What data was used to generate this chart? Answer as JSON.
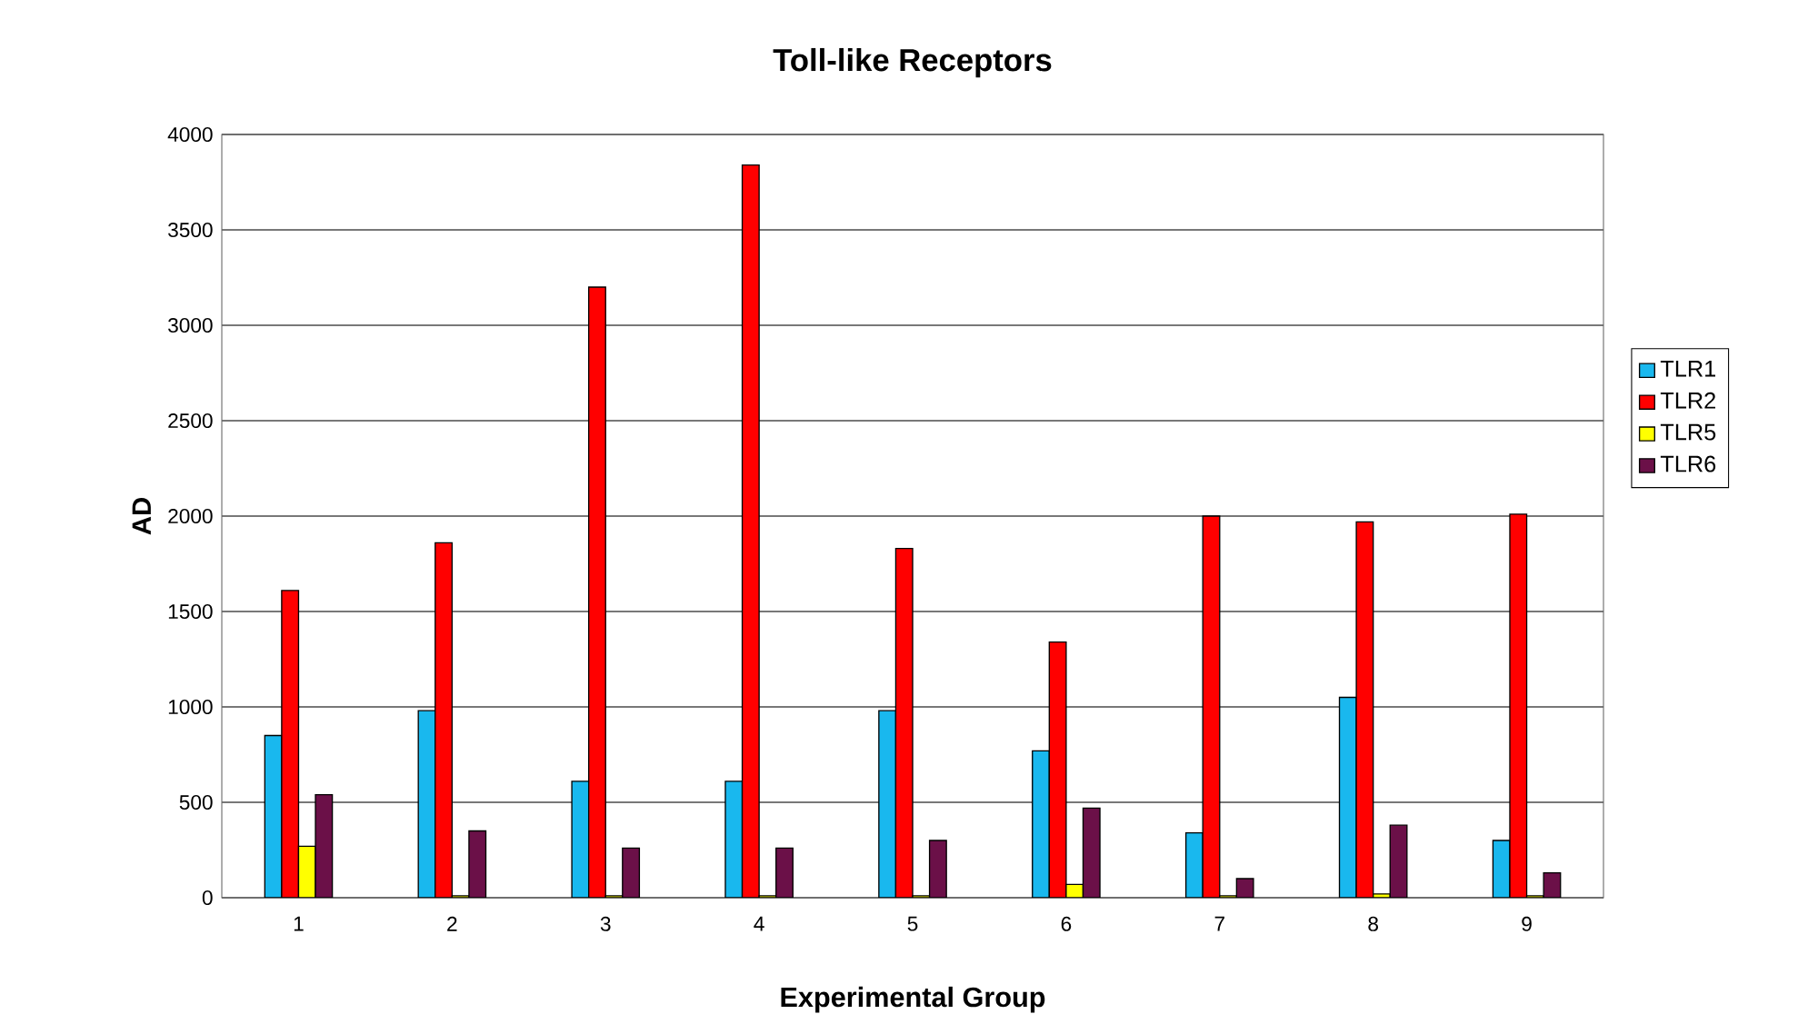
{
  "chart_data": {
    "type": "bar",
    "title": "Toll-like Receptors",
    "xlabel": "Experimental Group",
    "ylabel": "AD",
    "categories": [
      "1",
      "2",
      "3",
      "4",
      "5",
      "6",
      "7",
      "8",
      "9"
    ],
    "series": [
      {
        "name": "TLR1",
        "color": "#19b8ee",
        "values": [
          850,
          980,
          610,
          610,
          980,
          770,
          340,
          1050,
          300
        ]
      },
      {
        "name": "TLR2",
        "color": "#ff0000",
        "values": [
          1610,
          1860,
          3200,
          3840,
          1830,
          1340,
          2000,
          1970,
          2010
        ]
      },
      {
        "name": "TLR5",
        "color": "#ffff00",
        "values": [
          270,
          10,
          10,
          10,
          10,
          70,
          10,
          20,
          10
        ]
      },
      {
        "name": "TLR6",
        "color": "#6b1048",
        "values": [
          540,
          350,
          260,
          260,
          300,
          470,
          100,
          380,
          130
        ]
      }
    ],
    "ylim": [
      0,
      4000
    ],
    "yticks": [
      0,
      500,
      1000,
      1500,
      2000,
      2500,
      3000,
      3500,
      4000
    ],
    "grid": "y",
    "legend": "right"
  }
}
